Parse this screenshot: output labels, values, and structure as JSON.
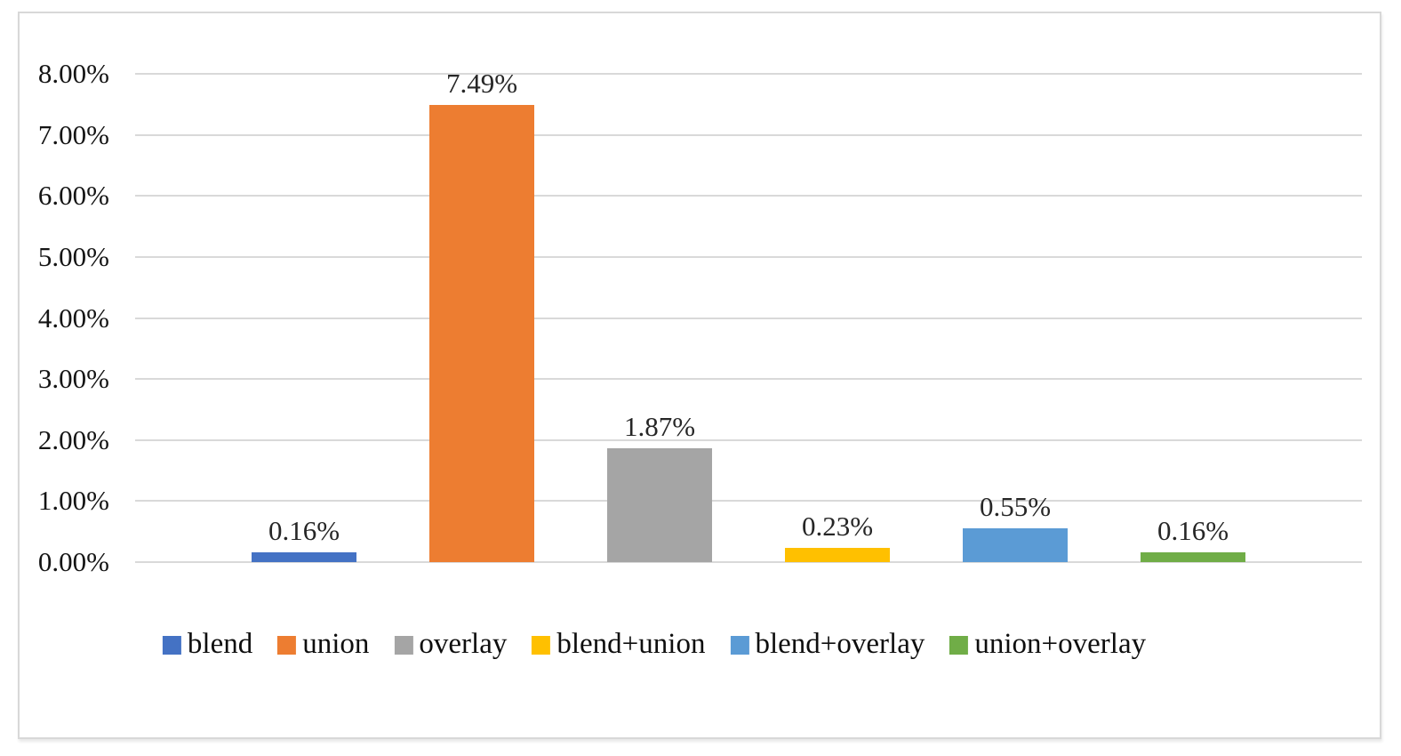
{
  "chart_data": {
    "type": "bar",
    "title": "",
    "xlabel": "",
    "ylabel": "",
    "categories": [
      "blend",
      "union",
      "overlay",
      "blend+union",
      "blend+overlay",
      "union+overlay"
    ],
    "values": [
      0.16,
      7.49,
      1.87,
      0.23,
      0.55,
      0.16
    ],
    "data_labels": [
      "0.16%",
      "7.49%",
      "1.87%",
      "0.23%",
      "0.55%",
      "0.16%"
    ],
    "bar_colors": [
      "#4472C4",
      "#ED7D31",
      "#A5A5A5",
      "#FFC000",
      "#5B9BD5",
      "#70AD47"
    ],
    "ylim": [
      0,
      8
    ],
    "y_tick_labels": [
      "0.00%",
      "1.00%",
      "2.00%",
      "3.00%",
      "4.00%",
      "5.00%",
      "6.00%",
      "7.00%",
      "8.00%"
    ],
    "grid": true,
    "gridline_color": "#d9d9d9",
    "legend_position": "bottom",
    "legend_entries": [
      "blend",
      "union",
      "overlay",
      "blend+union",
      "blend+overlay",
      "union+overlay"
    ],
    "colors": {
      "background": "#ffffff",
      "frame_border": "#d8d8d8",
      "tick_text": "#141414",
      "data_label_text": "#262626"
    }
  }
}
